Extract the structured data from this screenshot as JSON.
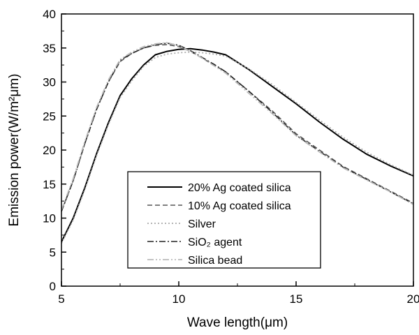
{
  "chart_data": {
    "type": "line",
    "xlabel": "Wave length(μm)",
    "ylabel": "Emission power(W/m²μm)",
    "xlim": [
      5,
      20
    ],
    "ylim": [
      0,
      40
    ],
    "x_ticks": [
      5,
      10,
      15,
      20
    ],
    "x_tick_labels": [
      "5",
      "10",
      "15",
      "20"
    ],
    "y_ticks": [
      0,
      5,
      10,
      15,
      20,
      25,
      30,
      35,
      40
    ],
    "y_tick_labels": [
      "0",
      "5",
      "10",
      "15",
      "20",
      "25",
      "30",
      "35",
      "40"
    ],
    "grid": false,
    "legend_position": "center-bottom",
    "series": [
      {
        "name": "20% Ag coated silica",
        "color": "#000000",
        "dash": "solid",
        "width": 2,
        "x": [
          5,
          5.5,
          6,
          6.5,
          7,
          7.5,
          8,
          8.5,
          9,
          9.5,
          10,
          10.5,
          11,
          11.5,
          12,
          13,
          14,
          15,
          16,
          17,
          18,
          19,
          20
        ],
        "y": [
          6.5,
          10,
          14.5,
          19.5,
          24,
          28,
          30.5,
          32.5,
          34,
          34.5,
          34.8,
          34.9,
          34.7,
          34.4,
          34.0,
          31.8,
          29.3,
          26.8,
          24.1,
          21.6,
          19.4,
          17.7,
          16.2
        ]
      },
      {
        "name": "10% Ag coated silica",
        "color": "#555555",
        "dash": "dashed",
        "width": 1.6,
        "x": [
          5,
          5.5,
          6,
          6.5,
          7,
          7.5,
          8,
          8.5,
          9,
          9.5,
          10,
          10.5,
          11,
          11.5,
          12,
          13,
          14,
          15,
          16,
          17,
          18,
          19,
          20
        ],
        "y": [
          11,
          15.5,
          21,
          26,
          30,
          33,
          34.2,
          35,
          35.4,
          35.5,
          35.2,
          34.5,
          33.5,
          32.5,
          31.5,
          28.6,
          25.7,
          22.4,
          20.0,
          17.6,
          15.8,
          14.0,
          12.2
        ]
      },
      {
        "name": "Silver",
        "color": "#aaaaaa",
        "dash": "dotted",
        "width": 1.8,
        "x": [
          5,
          5.5,
          6,
          6.5,
          7,
          7.5,
          8,
          8.5,
          9,
          9.5,
          10,
          10.5,
          11,
          11.5,
          12,
          13,
          14,
          15,
          16,
          17,
          18,
          19,
          20
        ],
        "y": [
          6.3,
          9.7,
          14.2,
          19.2,
          23.7,
          27.7,
          30.2,
          32.3,
          33.6,
          34.1,
          34.3,
          34.4,
          34.3,
          34.1,
          33.8,
          31.9,
          29.6,
          27.0,
          24.4,
          21.9,
          19.7,
          17.9,
          16.3
        ]
      },
      {
        "name": "SiO₂ agent",
        "color": "#222222",
        "dash": "dashdot",
        "width": 1.6,
        "x": [
          5,
          5.5,
          6,
          6.5,
          7,
          7.5,
          8,
          8.5,
          9,
          9.5,
          10,
          10.5,
          11,
          11.5,
          12,
          13,
          14,
          15,
          16,
          17,
          18,
          19,
          20
        ],
        "y": [
          11,
          15.5,
          21,
          26,
          30,
          33.2,
          34.2,
          35,
          35.5,
          35.7,
          35.4,
          34.6,
          33.6,
          32.6,
          31.5,
          28.6,
          25.5,
          22.2,
          19.8,
          17.5,
          15.7,
          13.9,
          12.1
        ]
      },
      {
        "name": "Silica bead",
        "color": "#bbbbbb",
        "dash": "dashdotdot",
        "width": 1.8,
        "x": [
          5,
          5.5,
          6,
          6.5,
          7,
          7.5,
          8,
          8.5,
          9,
          9.5,
          10,
          10.5,
          11,
          11.5,
          12,
          13,
          14,
          15,
          16,
          17,
          18,
          19,
          20
        ],
        "y": [
          11.2,
          15.8,
          21.3,
          26.3,
          30.3,
          33.3,
          34.4,
          35.2,
          35.6,
          35.8,
          35.3,
          34.5,
          33.5,
          32.4,
          31.3,
          28.3,
          25.3,
          22.1,
          19.7,
          17.4,
          15.6,
          13.9,
          12.0
        ]
      }
    ]
  }
}
